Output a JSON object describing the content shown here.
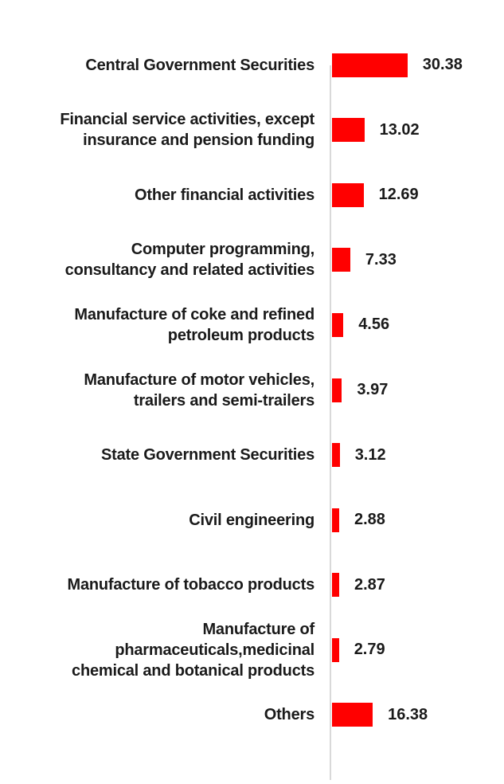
{
  "chart_data": {
    "type": "bar",
    "orientation": "horizontal",
    "title": "",
    "xlabel": "",
    "ylabel": "",
    "grid": false,
    "legend": false,
    "bar_color": "#FF0000",
    "axis_color": "#D9D9D9",
    "text_color": "#1A1A1A",
    "categories": [
      "Central Government Securities",
      "Financial service activities, except\ninsurance and pension funding",
      "Other financial activities",
      "Computer programming,\nconsultancy and related activities",
      "Manufacture of coke and refined\npetroleum products",
      "Manufacture of motor vehicles,\ntrailers and semi-trailers",
      "State Government Securities",
      "Civil engineering",
      "Manufacture of tobacco products",
      "Manufacture of\npharmaceuticals,medicinal\nchemical and botanical products",
      "Others"
    ],
    "values": [
      30.38,
      13.02,
      12.69,
      7.33,
      4.56,
      3.97,
      3.12,
      2.88,
      2.87,
      2.79,
      16.38
    ],
    "value_labels": [
      "30.38",
      "13.02",
      "12.69",
      "7.33",
      "4.56",
      "3.97",
      "3.12",
      "2.88",
      "2.87",
      "2.79",
      "16.38"
    ]
  }
}
